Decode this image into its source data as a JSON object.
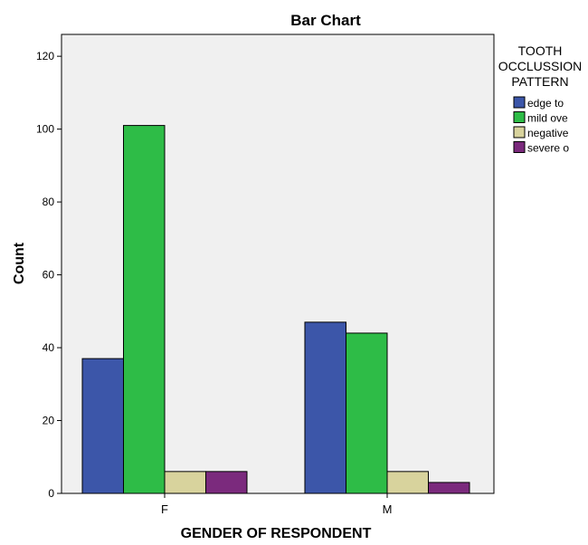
{
  "chart_data": {
    "type": "bar",
    "title": "Bar Chart",
    "xlabel": "GENDER OF RESPONDENT",
    "ylabel": "Count",
    "categories": [
      "F",
      "M"
    ],
    "ylim": [
      0,
      126
    ],
    "yticks": [
      0,
      20,
      40,
      60,
      80,
      100,
      120
    ],
    "grid": false,
    "legend_title": "TOOTH OCCLUSSION PATTERN",
    "legend_title_lines": [
      "TOOTH",
      "OCCLUSSION",
      "PATTERN"
    ],
    "legend_placement": "right",
    "series": [
      {
        "name": "edge to",
        "values": [
          37,
          47
        ],
        "color": "#3c56a9"
      },
      {
        "name": "mild ove",
        "values": [
          101,
          44
        ],
        "color": "#2ebc47"
      },
      {
        "name": "negative",
        "values": [
          6,
          6
        ],
        "color": "#d8d39d"
      },
      {
        "name": "severe o",
        "values": [
          6,
          3
        ],
        "color": "#7b2a7d"
      }
    ],
    "plot_background": "#f0f0f0"
  }
}
